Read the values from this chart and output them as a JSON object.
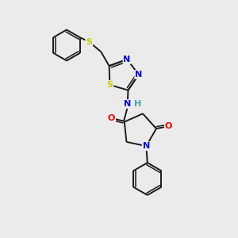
{
  "background_color": "#ebebeb",
  "bond_color": "#1a1a1a",
  "atom_colors": {
    "N": "#0000ee",
    "S": "#cccc00",
    "O": "#ee0000",
    "NH": "#0000ee",
    "H": "#4aa0a0"
  },
  "figsize": [
    3.0,
    3.0
  ],
  "dpi": 100,
  "xlim": [
    0,
    10
  ],
  "ylim": [
    0,
    10
  ]
}
